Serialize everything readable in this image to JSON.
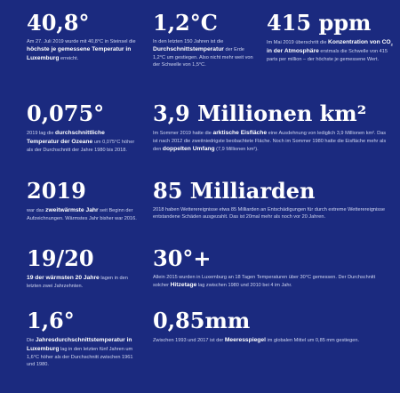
{
  "stats": {
    "temp_record": {
      "figure": "40,8°",
      "text": {
        "p1": "Am 27. Juli 2019 wurde mit 40,8°C in Steinsel die ",
        "b1": "höchste je gemessene Temperatur in Luxemburg",
        "p2": " erreicht."
      }
    },
    "warming": {
      "figure": "1,2°C",
      "text": {
        "p1": "In den letzten 150 Jahren ist die ",
        "b1": "Durchschnittstemperatur",
        "p2": " der Erde 1,2°C um gestiegen. Also nicht mehr weit von der Schwelle von 1,5°C."
      }
    },
    "co2": {
      "figure": "415 ppm",
      "text": {
        "p1": "Im Mai 2019 überschritt die ",
        "b1": "Konzentration von CO",
        "sub": "2",
        "b2": " in der Atmosphäre",
        "p2": " erstmals die Schwelle von 415 parts per million – der höchste je gemessene Wert."
      }
    },
    "ocean": {
      "figure": "0,075°",
      "text": {
        "p1": "2019 lag die ",
        "b1": "durchschnittliche Temperatur der Ozeane",
        "p2": " um 0,075°C höher als der Durchschnitt der Jahre 1980 bis 2018."
      }
    },
    "arctic": {
      "figure": "3,9 Millionen km²",
      "text": {
        "p1": "Im Sommer 2019 hatte die ",
        "b1": "arktische Eisfläche",
        "p2": " eine Ausdehnung von lediglich 3,9 Millionen km². Das ist nach 2012 die zweitniedrigste beobachtete Fläche. Noch im Sommer 1980 hatte die Eisfläche mehr als den ",
        "b2": "doppelten Umfang",
        "p3": " (7,9 Millionen km²)."
      }
    },
    "second_warmest": {
      "figure": "2019",
      "text": {
        "p1": "war das ",
        "b1": "zweitwärmste Jahr",
        "p2": " seit Beginn der Aufzeichnungen. Wärmstes Jahr bisher war 2016."
      }
    },
    "damages": {
      "figure": "85 Milliarden",
      "text": {
        "p1": "2018 haben Wetterereignisse etwa 85 Milliarden an Entschädigungen für durch extreme Wetterereignisse entstandene Schäden ausgezahlt. Das ist 20mal mehr als noch vor 20 Jahren."
      }
    },
    "warmest_years": {
      "figure": "19/20",
      "text": {
        "b1": "19 der wärmsten 20 Jahre",
        "p1": " lagen in den letzten zwei Jahrzehnten."
      }
    },
    "heat_days": {
      "figure": "30°+",
      "text": {
        "p1": "Allein 2015 wurden in Luxemburg an 18 Tagen Temperaturen über 30°C gemessen. Der Durchschnitt solcher ",
        "b1": "Hitzetage",
        "p2": " lag zwischen 1980 und 2010 bei 4 im Jahr."
      }
    },
    "lux_annual": {
      "figure": "1,6°",
      "text": {
        "p1": "Die ",
        "b1": "Jahresdurchschnittstemperatur in Luxemburg",
        "p2": " lag in den letzten fünf Jahren um 1,6°C höher als der Durchschnitt zwischen 1961 und 1980."
      }
    },
    "sea_level": {
      "figure": "0,85mm",
      "text": {
        "p1": "Zwischen 1993 und 2017 ist der ",
        "b1": "Meeresspiegel",
        "p2": " im globalen Mittel um 0,85 mm gestiegen."
      }
    }
  },
  "colors": {
    "background": "#1b2a7f",
    "text": "#ffffff",
    "muted": "#cfd5f0"
  }
}
